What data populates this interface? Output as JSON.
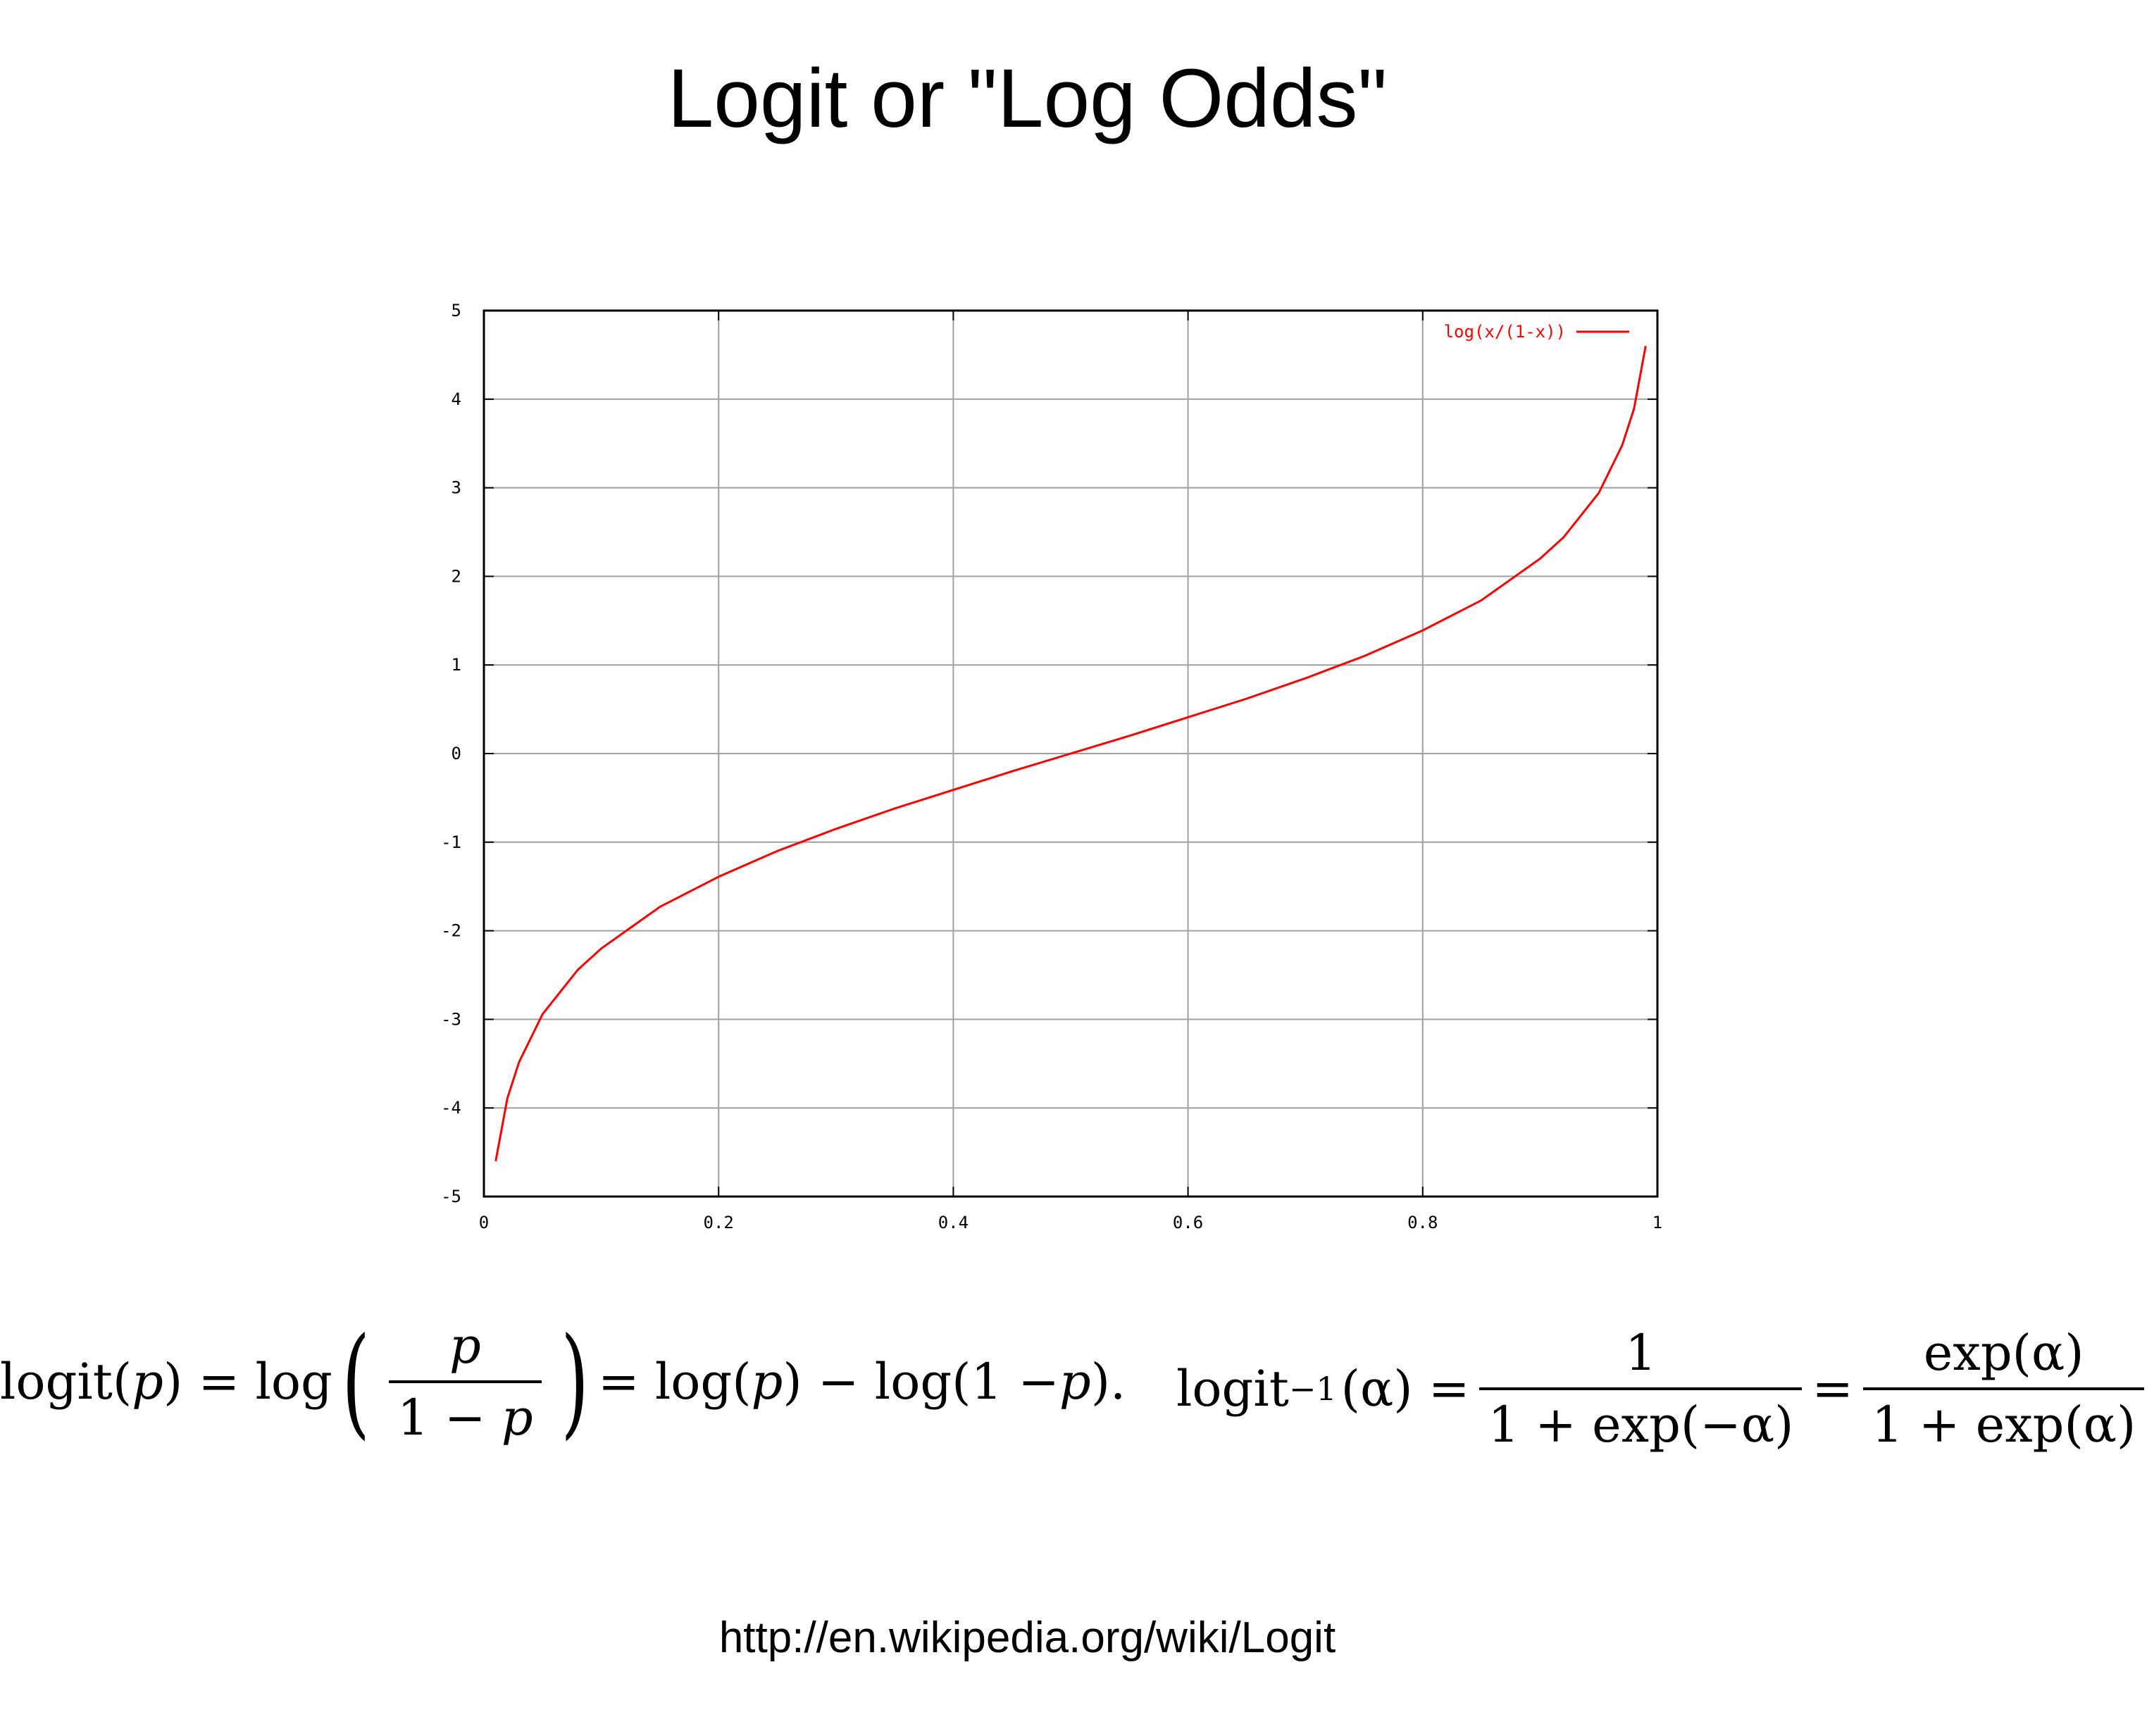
{
  "title": "Logit or \"Log Odds\"",
  "source": "http://en.wikipedia.org/wiki/Logit",
  "chart_data": {
    "type": "line",
    "title": "",
    "xlabel": "",
    "ylabel": "",
    "xlim": [
      0,
      1
    ],
    "ylim": [
      -5,
      5
    ],
    "xticks": [
      0,
      0.2,
      0.4,
      0.6,
      0.8,
      1
    ],
    "xtick_labels": [
      "0",
      "0.2",
      "0.4",
      "0.6",
      "0.8",
      "1"
    ],
    "yticks": [
      -5,
      -4,
      -3,
      -2,
      -1,
      0,
      1,
      2,
      3,
      4,
      5
    ],
    "ytick_labels": [
      "-5",
      "-4",
      "-3",
      "-2",
      "-1",
      "0",
      "1",
      "2",
      "3",
      "4",
      "5"
    ],
    "grid": true,
    "legend_position": "top-right",
    "series": [
      {
        "name": "log(x/(1-x))",
        "color": "#ff0000",
        "x": [
          0.01,
          0.02,
          0.03,
          0.05,
          0.08,
          0.1,
          0.15,
          0.2,
          0.25,
          0.3,
          0.35,
          0.4,
          0.45,
          0.5,
          0.55,
          0.6,
          0.65,
          0.7,
          0.75,
          0.8,
          0.85,
          0.9,
          0.92,
          0.95,
          0.97,
          0.98,
          0.99
        ],
        "y": [
          -4.6,
          -3.89,
          -3.48,
          -2.94,
          -2.44,
          -2.2,
          -1.73,
          -1.39,
          -1.1,
          -0.85,
          -0.62,
          -0.41,
          -0.2,
          0,
          0.2,
          0.41,
          0.62,
          0.85,
          1.1,
          1.39,
          1.73,
          2.2,
          2.44,
          2.94,
          3.48,
          3.89,
          4.6
        ]
      }
    ]
  },
  "formula_logit": {
    "lhs": "logit(",
    "var": "p",
    "close": ") = log",
    "num": "p",
    "den_a": "1 − ",
    "den_b": "p",
    "rhs_a": " = log(",
    "rhs_b": "p",
    "rhs_c": ") − log(1 − ",
    "rhs_d": "p",
    "rhs_e": ")."
  },
  "formula_inverse": {
    "lhs": "logit",
    "sup": "−1",
    "arg": "(α) =",
    "frac1_num": "1",
    "frac1_den": "1 + exp(−α)",
    "eq": "=",
    "frac2_num": "exp(α)",
    "frac2_den": "1 + exp(α)"
  }
}
